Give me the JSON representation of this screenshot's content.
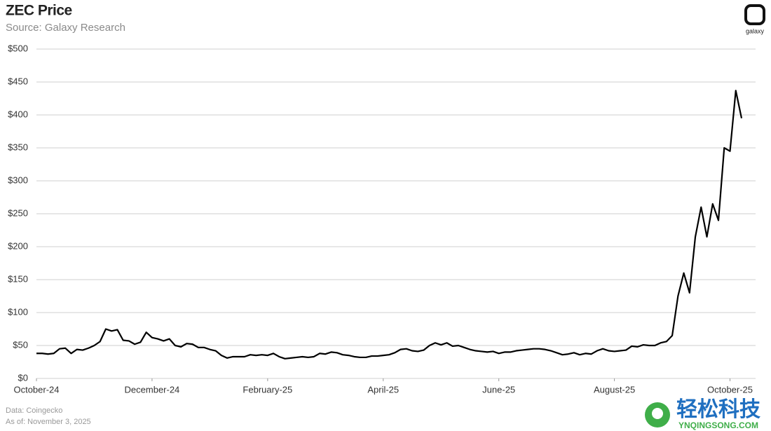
{
  "chart_data": {
    "type": "line",
    "title": "ZEC Price",
    "subtitle": "Source: Galaxy Research",
    "logo": "galaxy",
    "notes": [
      "Data: Coingecko",
      "As of: November 3, 2025"
    ],
    "watermark": [
      "轻松科技",
      "YNQINGSONG.COM"
    ],
    "color": "#000000",
    "grid": true,
    "categories": [
      "October-24",
      null,
      null,
      null,
      null,
      null,
      null,
      null,
      null,
      null,
      null,
      null,
      null,
      null,
      null,
      null,
      null,
      null,
      null,
      null,
      "December-24",
      null,
      null,
      null,
      null,
      null,
      null,
      null,
      null,
      null,
      null,
      null,
      null,
      null,
      null,
      null,
      null,
      null,
      null,
      null,
      "February-25",
      null,
      null,
      null,
      null,
      null,
      null,
      null,
      null,
      null,
      null,
      null,
      null,
      null,
      null,
      null,
      null,
      null,
      null,
      null,
      "April-25",
      null,
      null,
      null,
      null,
      null,
      null,
      null,
      null,
      null,
      null,
      null,
      null,
      null,
      null,
      null,
      null,
      null,
      null,
      null,
      "June-25",
      null,
      null,
      null,
      null,
      null,
      null,
      null,
      null,
      null,
      null,
      null,
      null,
      null,
      null,
      null,
      null,
      null,
      null,
      null,
      "August-25",
      null,
      null,
      null,
      null,
      null,
      null,
      null,
      null,
      null,
      null,
      null,
      null,
      null,
      null,
      null,
      null,
      null,
      null,
      null,
      "October-25",
      null,
      null
    ],
    "values": [
      38,
      38,
      37,
      38,
      45,
      46,
      38,
      44,
      43,
      46,
      50,
      56,
      75,
      72,
      74,
      58,
      57,
      52,
      55,
      70,
      62,
      60,
      57,
      60,
      50,
      48,
      53,
      52,
      47,
      47,
      44,
      42,
      35,
      31,
      33,
      33,
      33,
      36,
      35,
      36,
      35,
      38,
      33,
      30,
      31,
      32,
      33,
      32,
      33,
      38,
      37,
      40,
      39,
      36,
      35,
      33,
      32,
      32,
      34,
      34,
      35,
      36,
      39,
      44,
      45,
      42,
      41,
      43,
      50,
      54,
      51,
      54,
      49,
      50,
      47,
      44,
      42,
      41,
      40,
      41,
      38,
      40,
      40,
      42,
      43,
      44,
      45,
      45,
      44,
      42,
      39,
      36,
      37,
      39,
      36,
      38,
      37,
      42,
      45,
      42,
      41,
      42,
      43,
      49,
      48,
      51,
      50,
      50,
      54,
      56,
      65,
      125,
      160,
      130,
      215,
      260,
      215,
      265,
      240,
      350,
      345,
      437,
      395
    ],
    "ylim": [
      0,
      500
    ],
    "yticks": [
      {
        "value": 0,
        "label": "$0"
      },
      {
        "value": 50,
        "label": "$50"
      },
      {
        "value": 100,
        "label": "$100"
      },
      {
        "value": 150,
        "label": "$150"
      },
      {
        "value": 200,
        "label": "$200"
      },
      {
        "value": 250,
        "label": "$250"
      },
      {
        "value": 300,
        "label": "$300"
      },
      {
        "value": 350,
        "label": "$350"
      },
      {
        "value": 400,
        "label": "$400"
      },
      {
        "value": 450,
        "label": "$450"
      },
      {
        "value": 500,
        "label": "$500"
      }
    ]
  }
}
